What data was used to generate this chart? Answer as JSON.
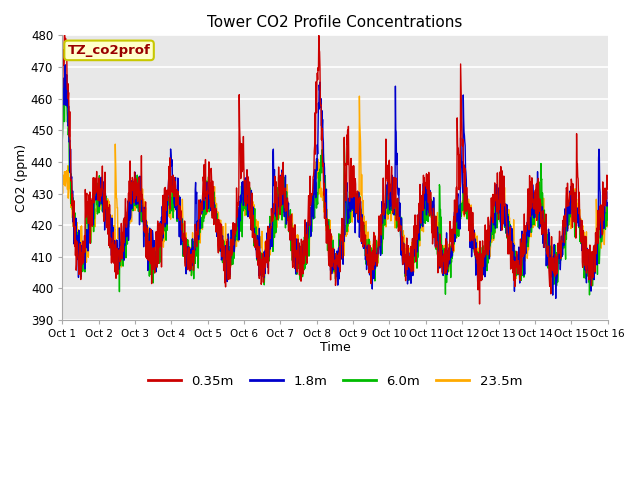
{
  "title": "Tower CO2 Profile Concentrations",
  "xlabel": "Time",
  "ylabel": "CO2 (ppm)",
  "ylim": [
    390,
    480
  ],
  "xlim": [
    0,
    15
  ],
  "plot_bg_color": "#e8e8e8",
  "legend_label": "TZ_co2prof",
  "legend_bg": "#ffffcc",
  "legend_border": "#c8c800",
  "series_labels": [
    "0.35m",
    "1.8m",
    "6.0m",
    "23.5m"
  ],
  "series_colors": [
    "#cc0000",
    "#0000cc",
    "#00bb00",
    "#ffaa00"
  ],
  "xtick_labels": [
    "Oct 1",
    "Oct 2",
    "Oct 3",
    "Oct 4",
    "Oct 5",
    "Oct 6",
    "Oct 7",
    "Oct 8",
    "Oct 9",
    "Oct 10",
    "Oct 11",
    "Oct 12",
    "Oct 13",
    "Oct 14",
    "Oct 15",
    "Oct 16"
  ],
  "ytick_values": [
    390,
    400,
    410,
    420,
    430,
    440,
    450,
    460,
    470,
    480
  ],
  "seed": 42,
  "n_points": 1440
}
